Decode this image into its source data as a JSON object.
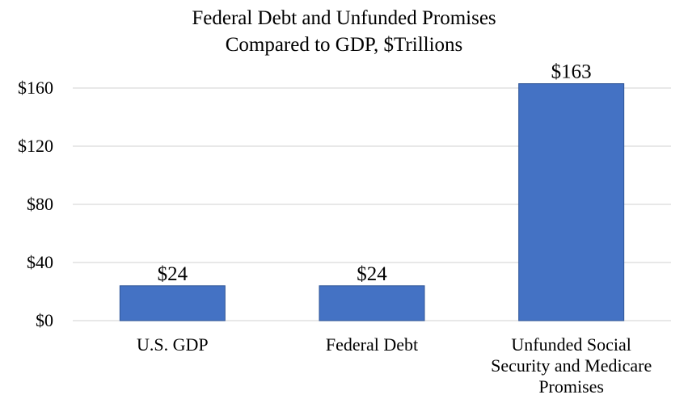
{
  "chart_data": {
    "type": "bar",
    "title": [
      "Federal Debt and Unfunded Promises",
      "Compared to GDP, $Trillions"
    ],
    "categories": [
      [
        "U.S. GDP"
      ],
      [
        "Federal Debt"
      ],
      [
        "Unfunded Social",
        "Security and Medicare",
        "Promises"
      ]
    ],
    "values": [
      24,
      24,
      163
    ],
    "data_labels": [
      "$24",
      "$24",
      "$163"
    ],
    "ylim": [
      0,
      160
    ],
    "yticks": [
      0,
      40,
      80,
      120,
      160
    ],
    "ytick_labels": [
      "$0",
      "$40",
      "$80",
      "$120",
      "$160"
    ],
    "grid": true,
    "bar_color": "#4472C4",
    "bar_edge_color": "#2F5597",
    "grid_color": "#D9D9D9"
  }
}
